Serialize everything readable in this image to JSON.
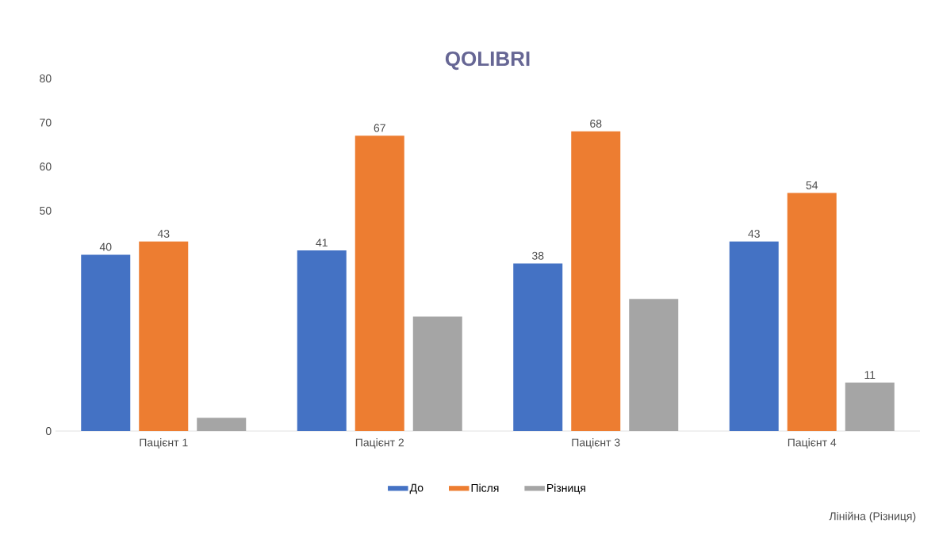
{
  "chart_data": {
    "type": "bar",
    "title": "QOLIBRI",
    "categories": [
      "Пацієнт 1",
      "Пацієнт 2",
      "Пацієнт 3",
      "Пацієнт 4"
    ],
    "series": [
      {
        "name": "До",
        "color": "#4472c4",
        "values": [
          40,
          41,
          38,
          43
        ],
        "value_labels": [
          "40",
          "41",
          "38",
          "43"
        ]
      },
      {
        "name": "Після",
        "color": "#ed7d31",
        "values": [
          43,
          67,
          68,
          54
        ],
        "value_labels": [
          "43",
          "67",
          "68",
          "54"
        ]
      },
      {
        "name": "Різниця",
        "color": "#a5a5a5",
        "values": [
          3,
          26,
          30,
          11
        ],
        "value_labels": [
          null,
          null,
          null,
          "11"
        ]
      }
    ],
    "ylim": [
      0,
      80
    ],
    "yticks": [
      0,
      50,
      60,
      70,
      80
    ],
    "legend": "bottom",
    "annotations": [
      "Лінійна (Різниця)"
    ]
  }
}
